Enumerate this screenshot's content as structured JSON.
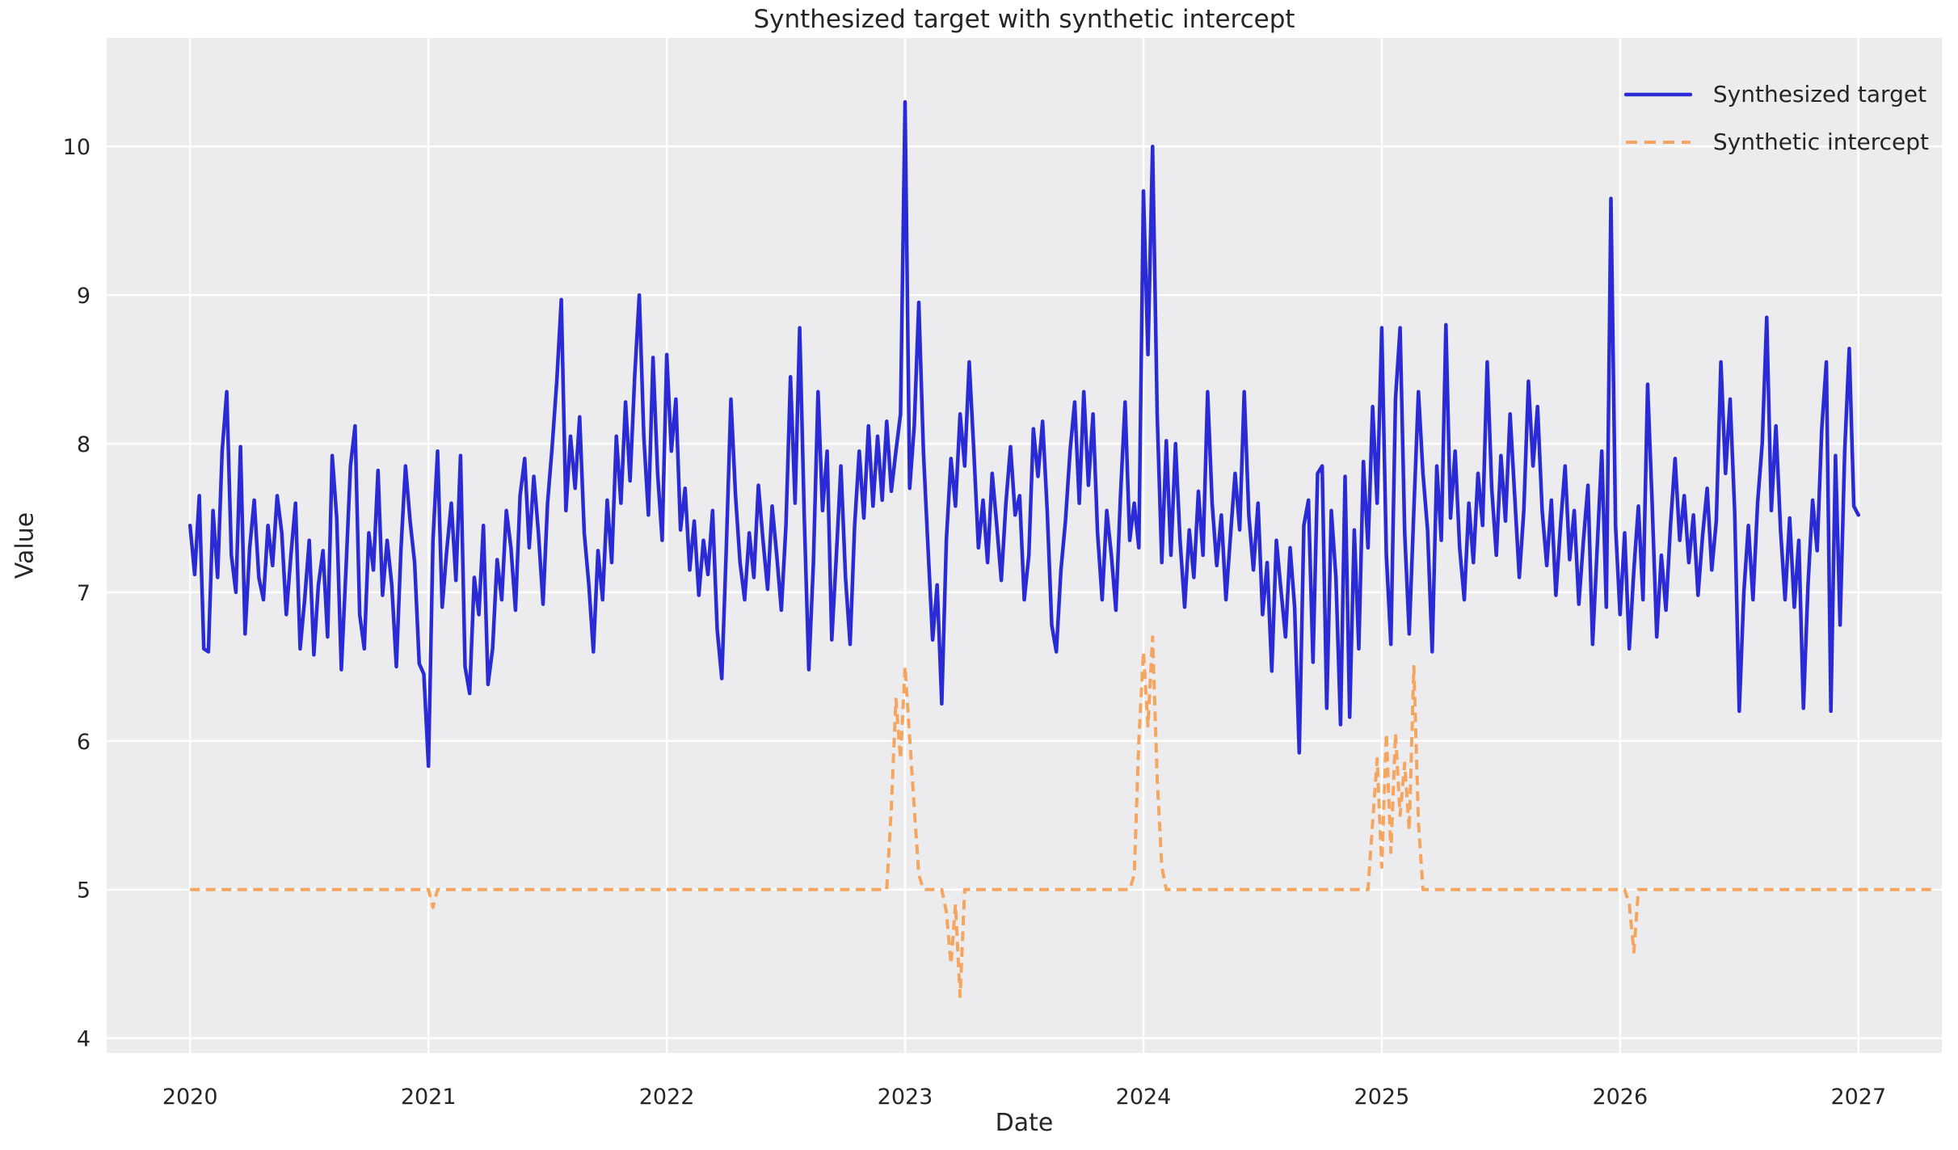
{
  "figure": {
    "title": "Synthesized target with synthetic intercept",
    "xlabel": "Date",
    "ylabel": "Value"
  },
  "legend": {
    "items": [
      {
        "label": "Synthesized target",
        "color": "#2b2bd6",
        "style": "solid"
      },
      {
        "label": "Synthetic intercept",
        "color": "#f4a55f",
        "style": "dashed"
      }
    ]
  },
  "chart_data": {
    "type": "line",
    "title": "Synthesized target with synthetic intercept",
    "xlabel": "Date",
    "ylabel": "Value",
    "xlim": [
      2019.65,
      2027.35
    ],
    "ylim": [
      3.9,
      10.73
    ],
    "x_ticks": [
      2020,
      2021,
      2022,
      2023,
      2024,
      2025,
      2026,
      2027
    ],
    "y_ticks": [
      4,
      5,
      6,
      7,
      8,
      9,
      10
    ],
    "grid": true,
    "grid_color": "#ffffff",
    "background": "#ececee",
    "legend_position": "upper right",
    "series": [
      {
        "name": "Synthesized target",
        "color": "#2b2bd6",
        "line_style": "solid",
        "line_width": 4.5,
        "x_start": 2020,
        "x_step": 0.01923077,
        "values": [
          7.45,
          7.12,
          7.65,
          6.62,
          6.6,
          7.55,
          7.1,
          7.95,
          8.35,
          7.25,
          7.0,
          7.98,
          6.72,
          7.3,
          7.62,
          7.1,
          6.95,
          7.45,
          7.18,
          7.65,
          7.4,
          6.85,
          7.25,
          7.6,
          6.62,
          6.95,
          7.35,
          6.58,
          7.05,
          7.28,
          6.7,
          7.92,
          7.5,
          6.48,
          7.15,
          7.85,
          8.12,
          6.85,
          6.62,
          7.4,
          7.15,
          7.82,
          6.98,
          7.35,
          7.05,
          6.5,
          7.28,
          7.85,
          7.48,
          7.2,
          6.52,
          6.45,
          5.83,
          7.35,
          7.95,
          6.9,
          7.28,
          7.6,
          7.08,
          7.92,
          6.5,
          6.32,
          7.1,
          6.85,
          7.45,
          6.38,
          6.62,
          7.22,
          6.95,
          7.55,
          7.3,
          6.88,
          7.65,
          7.9,
          7.3,
          7.78,
          7.4,
          6.92,
          7.6,
          7.98,
          8.42,
          8.97,
          7.55,
          8.05,
          7.7,
          8.18,
          7.4,
          7.05,
          6.6,
          7.28,
          6.95,
          7.62,
          7.2,
          8.05,
          7.6,
          8.28,
          7.75,
          8.45,
          9.0,
          8.05,
          7.52,
          8.58,
          7.8,
          7.35,
          8.6,
          7.95,
          8.3,
          7.42,
          7.7,
          7.15,
          7.48,
          6.98,
          7.35,
          7.12,
          7.55,
          6.75,
          6.42,
          7.3,
          8.3,
          7.65,
          7.2,
          6.95,
          7.4,
          7.1,
          7.72,
          7.35,
          7.02,
          7.58,
          7.25,
          6.88,
          7.45,
          8.45,
          7.6,
          8.78,
          7.5,
          6.48,
          7.2,
          8.35,
          7.55,
          7.95,
          6.68,
          7.25,
          7.85,
          7.1,
          6.65,
          7.45,
          7.95,
          7.5,
          8.12,
          7.58,
          8.05,
          7.62,
          8.15,
          7.68,
          7.95,
          8.2,
          10.3,
          7.7,
          8.12,
          8.95,
          7.95,
          7.3,
          6.68,
          7.05,
          6.25,
          7.35,
          7.9,
          7.58,
          8.2,
          7.85,
          8.55,
          7.95,
          7.3,
          7.62,
          7.2,
          7.8,
          7.45,
          7.08,
          7.6,
          7.98,
          7.52,
          7.65,
          6.95,
          7.25,
          8.1,
          7.78,
          8.15,
          7.55,
          6.78,
          6.6,
          7.15,
          7.48,
          7.95,
          8.28,
          7.6,
          8.35,
          7.72,
          8.2,
          7.4,
          6.95,
          7.55,
          7.25,
          6.88,
          7.65,
          8.28,
          7.35,
          7.6,
          7.3,
          9.7,
          8.6,
          10.0,
          8.2,
          7.2,
          8.02,
          7.25,
          8.0,
          7.35,
          6.9,
          7.42,
          7.1,
          7.68,
          7.25,
          8.35,
          7.6,
          7.18,
          7.52,
          6.95,
          7.38,
          7.8,
          7.42,
          8.35,
          7.52,
          7.15,
          7.6,
          6.85,
          7.2,
          6.47,
          7.35,
          7.02,
          6.7,
          7.3,
          6.9,
          5.92,
          7.45,
          7.62,
          6.53,
          7.8,
          7.85,
          6.22,
          7.55,
          7.1,
          6.11,
          7.78,
          6.16,
          7.42,
          6.62,
          7.88,
          7.3,
          8.25,
          7.6,
          8.78,
          7.25,
          6.65,
          8.3,
          8.78,
          7.4,
          6.72,
          7.55,
          8.35,
          7.8,
          7.42,
          6.6,
          7.85,
          7.35,
          8.8,
          7.5,
          7.95,
          7.3,
          6.95,
          7.6,
          7.2,
          7.8,
          7.45,
          8.55,
          7.7,
          7.25,
          7.92,
          7.48,
          8.2,
          7.65,
          7.1,
          7.55,
          8.42,
          7.85,
          8.25,
          7.55,
          7.18,
          7.62,
          6.98,
          7.45,
          7.85,
          7.22,
          7.55,
          6.92,
          7.35,
          7.72,
          6.65,
          7.3,
          7.95,
          6.9,
          9.65,
          7.45,
          6.85,
          7.4,
          6.62,
          7.15,
          7.58,
          6.95,
          8.4,
          7.6,
          6.7,
          7.25,
          6.88,
          7.45,
          7.9,
          7.35,
          7.65,
          7.2,
          7.52,
          6.98,
          7.38,
          7.7,
          7.15,
          7.48,
          8.55,
          7.8,
          8.3,
          7.55,
          6.2,
          7.0,
          7.45,
          6.95,
          7.6,
          8.0,
          8.85,
          7.55,
          8.12,
          7.42,
          6.95,
          7.5,
          6.9,
          7.35,
          6.22,
          7.05,
          7.62,
          7.28,
          8.1,
          8.55,
          6.2,
          7.92,
          6.78,
          7.95,
          8.64,
          7.58,
          7.52
        ]
      },
      {
        "name": "Synthetic intercept",
        "color": "#f4a55f",
        "line_style": "dashed",
        "line_width": 4,
        "x_start": 2020,
        "x_step": 0.01923077,
        "values": [
          5,
          5,
          5,
          5,
          5,
          5,
          5,
          5,
          5,
          5,
          5,
          5,
          5,
          5,
          5,
          5,
          5,
          5,
          5,
          5,
          5,
          5,
          5,
          5,
          5,
          5,
          5,
          5,
          5,
          5,
          5,
          5,
          5,
          5,
          5,
          5,
          5,
          5,
          5,
          5,
          5,
          5,
          5,
          5,
          5,
          5,
          5,
          5,
          5,
          5,
          5,
          5,
          5,
          4.88,
          5,
          5,
          5,
          5,
          5,
          5,
          5,
          5,
          5,
          5,
          5,
          5,
          5,
          5,
          5,
          5,
          5,
          5,
          5,
          5,
          5,
          5,
          5,
          5,
          5,
          5,
          5,
          5,
          5,
          5,
          5,
          5,
          5,
          5,
          5,
          5,
          5,
          5,
          5,
          5,
          5,
          5,
          5,
          5,
          5,
          5,
          5,
          5,
          5,
          5,
          5,
          5,
          5,
          5,
          5,
          5,
          5,
          5,
          5,
          5,
          5,
          5,
          5,
          5,
          5,
          5,
          5,
          5,
          5,
          5,
          5,
          5,
          5,
          5,
          5,
          5,
          5,
          5,
          5,
          5,
          5,
          5,
          5,
          5,
          5,
          5,
          5,
          5,
          5,
          5,
          5,
          5,
          5,
          5,
          5,
          5,
          5,
          5,
          5,
          5.55,
          6.28,
          5.88,
          6.5,
          6.02,
          5.55,
          5.1,
          5,
          5,
          5,
          5,
          5,
          4.85,
          4.5,
          4.9,
          4.28,
          5,
          5,
          5,
          5,
          5,
          5,
          5,
          5,
          5,
          5,
          5,
          5,
          5,
          5,
          5,
          5,
          5,
          5,
          5,
          5,
          5,
          5,
          5,
          5,
          5,
          5,
          5,
          5,
          5,
          5,
          5,
          5,
          5,
          5,
          5,
          5,
          5,
          5.1,
          6.0,
          6.6,
          6.1,
          6.7,
          5.75,
          5.15,
          5,
          5,
          5,
          5,
          5,
          5,
          5,
          5,
          5,
          5,
          5,
          5,
          5,
          5,
          5,
          5,
          5,
          5,
          5,
          5,
          5,
          5,
          5,
          5,
          5,
          5,
          5,
          5,
          5,
          5,
          5,
          5,
          5,
          5,
          5,
          5,
          5,
          5,
          5,
          5,
          5,
          5,
          5,
          5,
          5,
          5.45,
          5.88,
          5.15,
          6.05,
          5.25,
          6.05,
          5.5,
          5.85,
          5.4,
          6.5,
          5.45,
          5,
          5,
          5,
          5,
          5,
          5,
          5,
          5,
          5,
          5,
          5,
          5,
          5,
          5,
          5,
          5,
          5,
          5,
          5,
          5,
          5,
          5,
          5,
          5,
          5,
          5,
          5,
          5,
          5,
          5,
          5,
          5,
          5,
          5,
          5,
          5,
          5,
          5,
          5,
          5,
          5,
          5,
          5,
          5,
          5,
          4.9,
          4.58,
          5,
          5,
          5,
          5,
          5,
          5,
          5,
          5,
          5,
          5,
          5,
          5,
          5,
          5,
          5,
          5,
          5,
          5,
          5,
          5,
          5,
          5,
          5,
          5,
          5,
          5,
          5,
          5,
          5,
          5,
          5,
          5,
          5,
          5,
          5,
          5,
          5,
          5,
          5,
          5,
          5,
          5,
          5,
          5,
          5,
          5,
          5,
          5,
          5,
          5,
          5,
          5,
          5,
          5,
          5,
          5,
          5,
          5,
          5,
          5,
          5,
          5,
          5,
          5,
          5
        ]
      }
    ]
  }
}
